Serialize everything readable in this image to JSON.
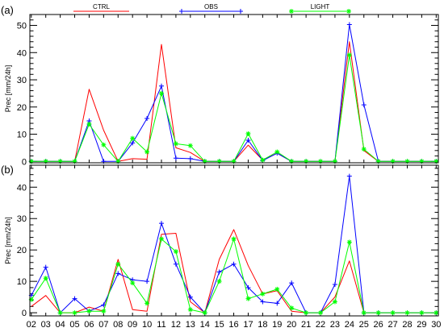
{
  "chart_data": {
    "type": "line",
    "legend": {
      "position": "top"
    },
    "grid": false,
    "x": [
      2,
      3,
      4,
      5,
      6,
      7,
      8,
      9,
      10,
      11,
      12,
      13,
      14,
      15,
      16,
      17,
      18,
      19,
      20,
      21,
      22,
      23,
      24,
      25,
      26,
      27,
      28,
      29,
      30
    ],
    "xlim": [
      1.9,
      30.15
    ],
    "xtick_labels": [
      "02",
      "03",
      "04",
      "05",
      "06",
      "07",
      "08",
      "09",
      "10",
      "11",
      "12",
      "13",
      "14",
      "15",
      "16",
      "17",
      "18",
      "19",
      "20",
      "21",
      "22",
      "23",
      "24",
      "25",
      "26",
      "27",
      "28",
      "29",
      "30"
    ],
    "series": [
      {
        "name": "CTRL",
        "color": "#ff0000",
        "marker": "none"
      },
      {
        "name": "OBS",
        "color": "#0000ff",
        "marker": "plus"
      },
      {
        "name": "LIGHT",
        "color": "#00ff00",
        "marker": "asterisk"
      }
    ],
    "panels": [
      {
        "label": "(a)",
        "ylabel": "Prec [mm/24h]",
        "ylim": [
          -0.5,
          54
        ],
        "yticks": [
          0,
          10,
          20,
          30,
          40,
          50
        ],
        "values": {
          "CTRL": [
            0,
            0,
            0,
            0,
            26.5,
            11.5,
            0,
            1,
            0.8,
            43,
            5,
            3.3,
            0,
            0,
            0,
            6,
            0.5,
            3,
            0,
            0,
            0,
            0,
            44,
            4,
            0,
            0,
            0,
            0,
            0
          ],
          "OBS": [
            0,
            0,
            0,
            0,
            14.9,
            0,
            0,
            6.8,
            15.8,
            27.7,
            1.2,
            1,
            0,
            0,
            0,
            7.8,
            0.3,
            3,
            0,
            0,
            0,
            0,
            50.3,
            20.8,
            0,
            0,
            0,
            0,
            0
          ],
          "LIGHT": [
            0,
            0,
            0,
            0,
            13.7,
            6.1,
            0,
            8.5,
            3.5,
            25,
            6.5,
            5.8,
            0,
            0,
            0,
            10.2,
            0.5,
            3.5,
            0,
            0,
            0,
            0,
            39.1,
            4.5,
            0,
            0,
            0,
            0,
            0
          ]
        }
      },
      {
        "label": "(b)",
        "ylabel": "Prec [mm/24h]",
        "ylim": [
          -1,
          47
        ],
        "yticks": [
          0,
          10,
          20,
          30,
          40
        ],
        "values": {
          "CTRL": [
            2,
            5.5,
            0,
            0,
            1.8,
            0.5,
            17,
            1,
            0.5,
            25,
            25.3,
            3.5,
            0,
            17,
            26.5,
            15,
            6,
            7,
            0.5,
            0,
            0,
            5,
            16.5,
            0,
            0,
            0,
            0,
            0,
            0
          ],
          "OBS": [
            5.5,
            14.5,
            0,
            4.5,
            0.5,
            2.5,
            12.5,
            10.5,
            10,
            28.5,
            15.5,
            5,
            0,
            13,
            15.5,
            8,
            3.5,
            3,
            9.5,
            0,
            0,
            9,
            43.5,
            0,
            0,
            0,
            0,
            0,
            0
          ],
          "LIGHT": [
            4.2,
            11,
            0,
            0,
            0.5,
            0.5,
            15.5,
            9.5,
            3,
            23.5,
            19.5,
            1,
            0,
            10,
            23.5,
            4.5,
            6,
            7.5,
            1.5,
            0,
            0,
            3.5,
            22.5,
            0,
            0,
            0,
            0,
            0,
            0
          ]
        }
      }
    ]
  }
}
